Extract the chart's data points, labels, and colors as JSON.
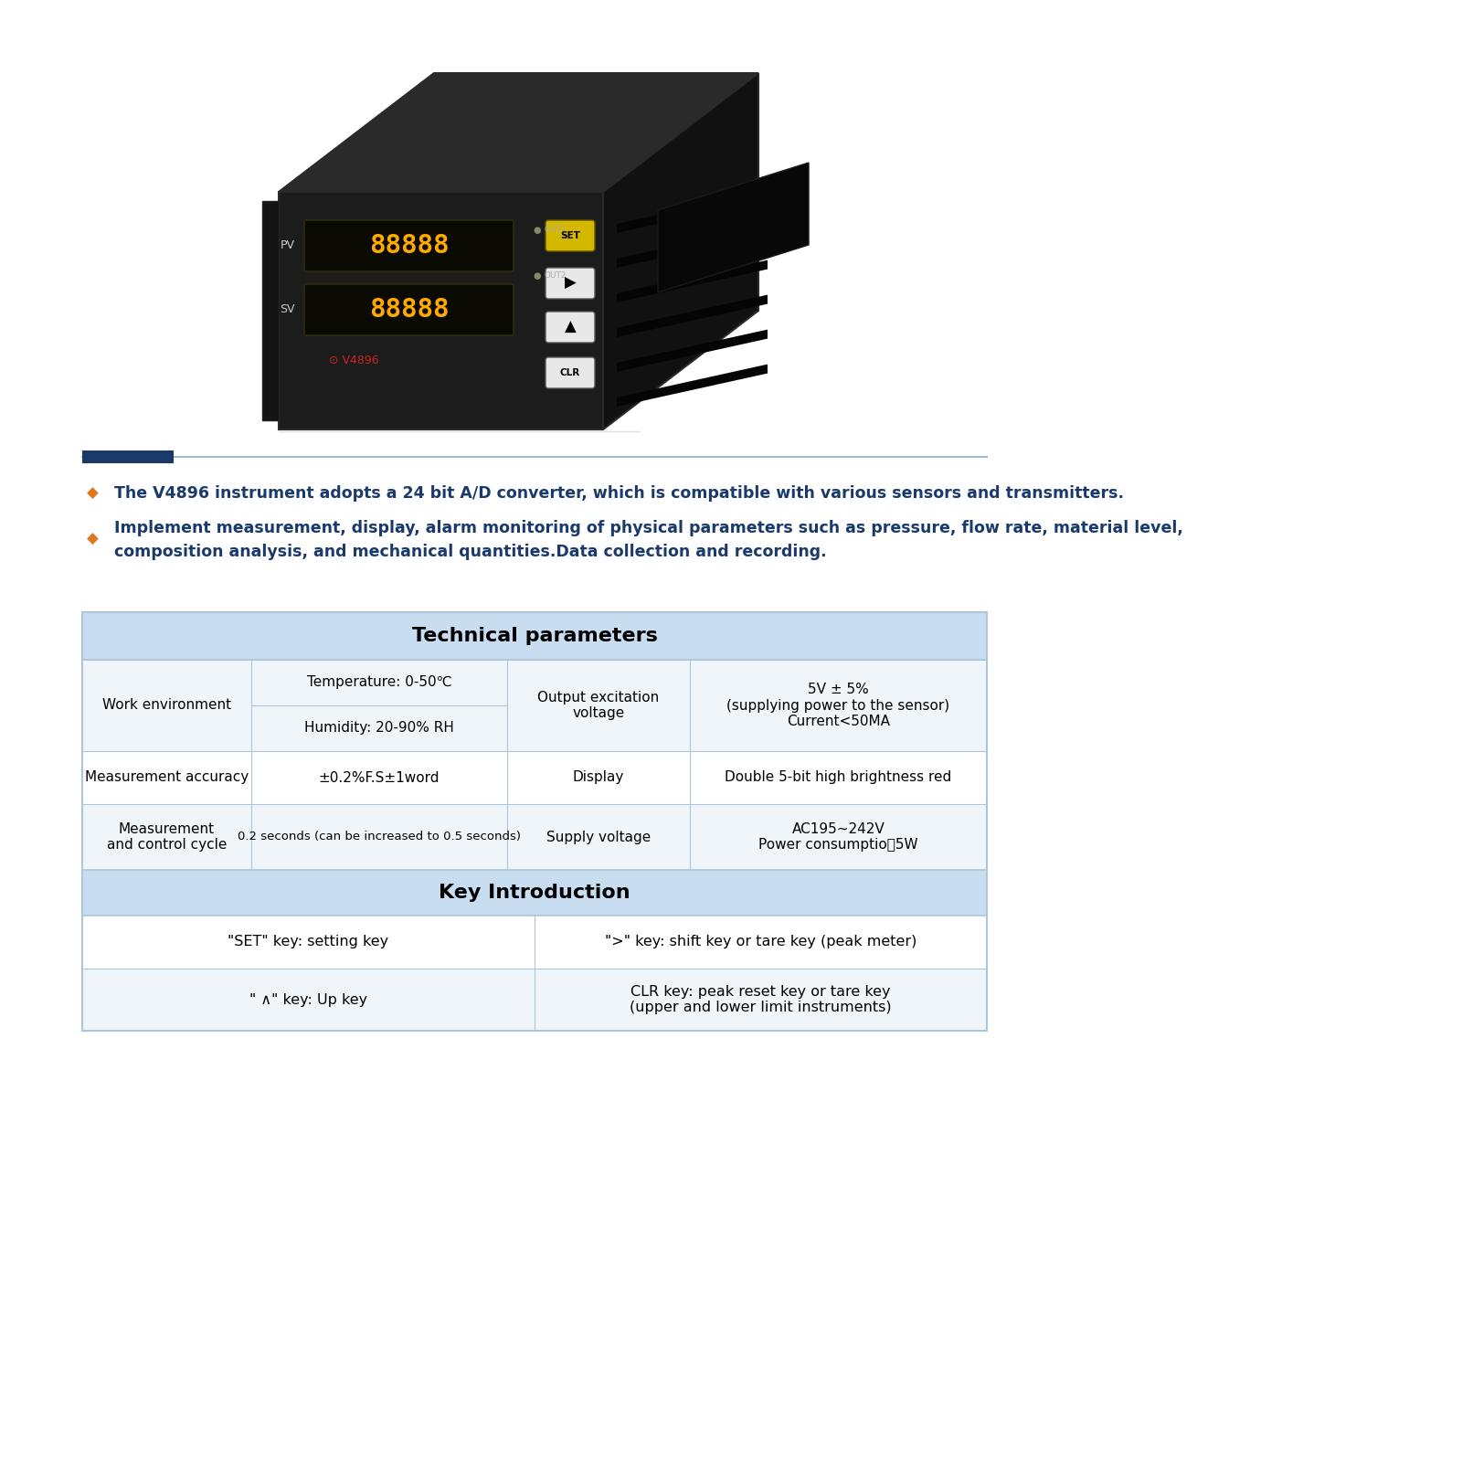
{
  "bg_color": "#ffffff",
  "divider_color_dark": "#1a3a6b",
  "divider_color_light": "#9db8d8",
  "bullet_color": "#e07820",
  "text_color_dark_blue": "#1a3a6b",
  "table_header_bg": "#c8ddf0",
  "table_row_bg1": "#f0f5fa",
  "table_row_bg2": "#ffffff",
  "table_border_color": "#adc6dc",
  "bullet_points": [
    "The V4896 instrument adopts a 24 bit A/D converter, which is compatible with various sensors and transmitters.",
    "Implement measurement, display, alarm monitoring of physical parameters such as pressure, flow rate, material level,\ncomposition analysis, and mechanical quantities.Data collection and recording."
  ],
  "tech_params_title": "Technical parameters",
  "key_intro_title": "Key Introduction",
  "tech_rows": [
    {
      "col1": "Work environment",
      "col2a": "Temperature: 0-50℃",
      "col2b": "Humidity: 20-90% RH",
      "col3": "Output excitation\nvoltage",
      "col4": "5V ± 5%\n(supplying power to the sensor)\nCurrent<50MA"
    },
    {
      "col1": "Measurement accuracy",
      "col2": "±0.2%F.S±1word",
      "col3": "Display",
      "col4": "Double 5-bit high brightness red"
    },
    {
      "col1": "Measurement\nand control cycle",
      "col2": "0.2 seconds (can be increased to 0.5 seconds)",
      "col3": "Supply voltage",
      "col4": "AC195~242V\nPower consumptio＜5W"
    }
  ],
  "key_rows": [
    {
      "col1": "\"SET\" key: setting key",
      "col2": "\">\" key: shift key or tare key (peak meter)"
    },
    {
      "col1": "\" ∧\" key: Up key",
      "col2": "CLR key: peak reset key or tare key\n(upper and lower limit instruments)"
    }
  ],
  "device": {
    "front_color": "#1c1c1c",
    "top_color": "#2a2a2a",
    "right_color": "#111111",
    "display_bg": "#0a0a00",
    "display_text": "#ffaa00",
    "btn_set_bg": "#d4b800",
    "btn_white_bg": "#e8e8e8",
    "label_color": "#cccccc",
    "logo_color": "#cc2222",
    "led_color": "#666666"
  }
}
